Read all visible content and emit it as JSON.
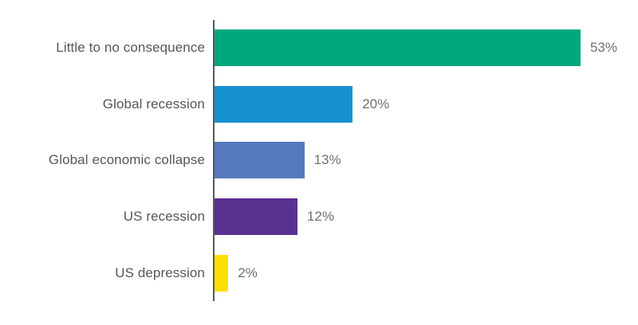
{
  "chart_data": {
    "type": "bar",
    "orientation": "horizontal",
    "title": "",
    "xlabel": "",
    "ylabel": "",
    "categories": [
      "Little to no consequence",
      "Global recession",
      "Global economic collapse",
      "US recession",
      "US depression"
    ],
    "values": [
      53,
      20,
      13,
      12,
      2
    ],
    "value_labels": [
      "53%",
      "20%",
      "13%",
      "12%",
      "2%"
    ],
    "colors": [
      "#00A87C",
      "#1790D0",
      "#5578BE",
      "#5A3191",
      "#FFDE00"
    ],
    "xlim": [
      0,
      61
    ],
    "grid": false,
    "legend": null,
    "axis_line_color": "#58595B",
    "category_label_color": "#55565A",
    "value_label_color": "#6F7073",
    "background_color": "#FFFFFF"
  }
}
